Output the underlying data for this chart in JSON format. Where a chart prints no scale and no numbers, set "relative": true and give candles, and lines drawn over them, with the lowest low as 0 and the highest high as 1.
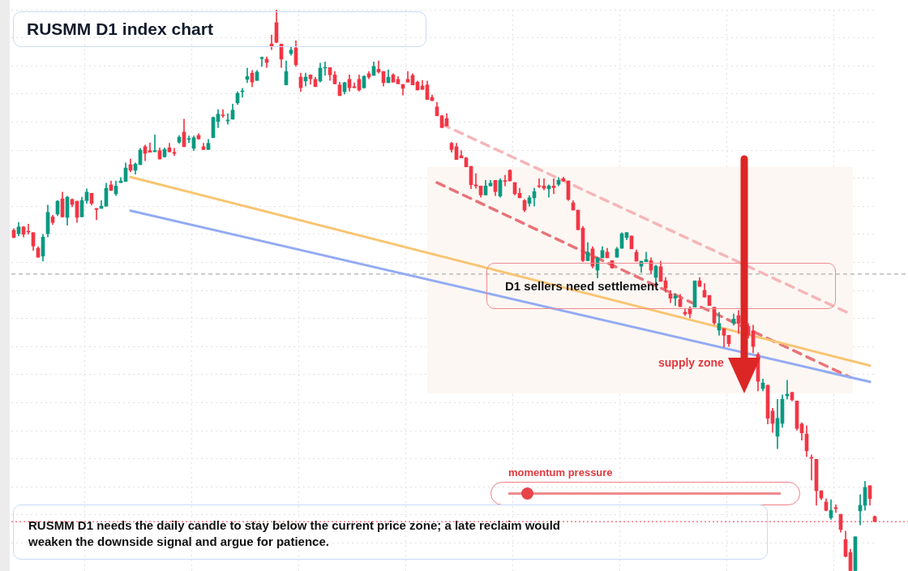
{
  "chart_data": {
    "type": "candlestick",
    "title": "RUSMM D1 index chart",
    "relative": true,
    "grid": true,
    "categories": [
      null,
      null,
      null,
      null,
      null,
      null,
      null,
      null,
      null,
      null,
      null,
      null,
      null,
      null,
      null,
      null,
      null,
      null,
      null,
      null,
      null,
      null,
      null,
      null,
      null,
      null,
      null,
      null,
      null,
      null,
      null,
      null,
      null,
      null,
      null,
      null,
      null,
      null,
      null,
      null,
      null,
      null,
      null,
      null,
      null,
      null,
      null,
      null,
      null,
      null,
      null,
      null,
      null,
      null,
      null,
      null,
      null,
      null,
      null,
      null,
      null,
      null,
      null,
      null,
      null,
      null,
      null,
      null,
      null,
      null,
      null,
      null,
      null,
      null,
      null,
      null,
      null,
      null,
      null,
      null,
      null,
      null,
      null,
      null,
      null,
      null,
      null,
      null,
      null,
      null,
      null,
      null,
      null,
      null,
      null,
      null,
      null,
      null,
      null,
      null,
      null,
      null,
      null,
      null,
      null,
      null,
      null,
      null,
      null,
      null,
      null,
      null,
      null,
      null,
      null,
      null,
      null,
      null,
      null,
      null,
      null,
      null,
      null,
      null,
      null,
      null,
      null,
      null,
      null,
      null,
      null,
      null,
      null,
      null,
      null,
      null,
      null,
      null,
      null,
      null,
      null,
      null,
      null,
      null,
      null,
      null,
      null,
      null,
      null,
      null,
      null,
      null,
      null,
      null,
      null,
      null,
      null,
      null,
      null,
      null,
      null,
      null,
      null,
      null,
      null,
      null,
      null,
      null,
      null,
      null,
      null,
      null,
      null,
      null,
      null,
      null,
      null,
      null
    ],
    "ohlc": [
      [
        0.607,
        0.61,
        0.594,
        0.594
      ],
      [
        0.601,
        0.621,
        0.597,
        0.613
      ],
      [
        0.613,
        0.614,
        0.595,
        0.6
      ],
      [
        0.605,
        0.618,
        0.6,
        0.604
      ],
      [
        0.603,
        0.603,
        0.571,
        0.579
      ],
      [
        0.575,
        0.578,
        0.559,
        0.559
      ],
      [
        0.561,
        0.6,
        0.552,
        0.595
      ],
      [
        0.601,
        0.652,
        0.595,
        0.639
      ],
      [
        0.631,
        0.634,
        0.617,
        0.621
      ],
      [
        0.636,
        0.66,
        0.633,
        0.659
      ],
      [
        0.663,
        0.675,
        0.63,
        0.631
      ],
      [
        0.63,
        0.668,
        0.616,
        0.666
      ],
      [
        0.662,
        0.663,
        0.649,
        0.653
      ],
      [
        0.659,
        0.659,
        0.621,
        0.63
      ],
      [
        0.631,
        0.666,
        0.631,
        0.66
      ],
      [
        0.66,
        0.681,
        0.655,
        0.675
      ],
      [
        0.673,
        0.673,
        0.652,
        0.655
      ],
      [
        0.646,
        0.646,
        0.626,
        0.644
      ],
      [
        0.646,
        0.66,
        0.646,
        0.65
      ],
      [
        0.65,
        0.691,
        0.65,
        0.682
      ],
      [
        0.688,
        0.695,
        0.678,
        0.678
      ],
      [
        0.672,
        0.695,
        0.669,
        0.686
      ],
      [
        0.692,
        0.701,
        0.692,
        0.695
      ],
      [
        0.694,
        0.727,
        0.694,
        0.718
      ],
      [
        0.724,
        0.734,
        0.711,
        0.714
      ],
      [
        0.714,
        0.727,
        0.707,
        0.725
      ],
      [
        0.724,
        0.753,
        0.724,
        0.75
      ],
      [
        0.756,
        0.759,
        0.731,
        0.744
      ],
      [
        0.749,
        0.763,
        0.746,
        0.746
      ],
      [
        0.747,
        0.777,
        0.747,
        0.749
      ],
      [
        0.749,
        0.754,
        0.734,
        0.734
      ],
      [
        0.738,
        0.754,
        0.737,
        0.751
      ],
      [
        0.754,
        0.762,
        0.746,
        0.747
      ],
      [
        0.746,
        0.753,
        0.74,
        0.744
      ],
      [
        0.764,
        0.776,
        0.762,
        0.773
      ],
      [
        0.782,
        0.805,
        0.756,
        0.756
      ],
      [
        0.769,
        0.775,
        0.763,
        0.77
      ],
      [
        0.753,
        0.775,
        0.749,
        0.772
      ],
      [
        0.776,
        0.779,
        0.769,
        0.77
      ],
      [
        0.756,
        0.762,
        0.751,
        0.751
      ],
      [
        0.751,
        0.769,
        0.751,
        0.762
      ],
      [
        0.772,
        0.809,
        0.772,
        0.808
      ],
      [
        0.801,
        0.822,
        0.79,
        0.814
      ],
      [
        0.812,
        0.822,
        0.808,
        0.811
      ],
      [
        0.802,
        0.815,
        0.796,
        0.803
      ],
      [
        0.805,
        0.832,
        0.805,
        0.821
      ],
      [
        0.834,
        0.854,
        0.831,
        0.851
      ],
      [
        0.854,
        0.86,
        0.844,
        0.855
      ],
      [
        0.876,
        0.896,
        0.87,
        0.881
      ],
      [
        0.887,
        0.892,
        0.863,
        0.871
      ],
      [
        0.874,
        0.892,
        0.874,
        0.889
      ],
      [
        0.913,
        0.916,
        0.899,
        0.915
      ],
      [
        0.912,
        0.916,
        0.897,
        0.906
      ],
      [
        0.939,
        0.955,
        0.929,
        0.935
      ],
      [
        0.977,
        1.0,
        0.941,
        0.942
      ],
      [
        0.939,
        0.939,
        0.897,
        0.912
      ],
      [
        0.866,
        0.909,
        0.866,
        0.89
      ],
      [
        0.922,
        0.933,
        0.919,
        0.928
      ],
      [
        0.932,
        0.945,
        0.899,
        0.902
      ],
      [
        0.88,
        0.887,
        0.854,
        0.861
      ],
      [
        0.873,
        0.887,
        0.864,
        0.88
      ],
      [
        0.884,
        0.884,
        0.867,
        0.877
      ],
      [
        0.876,
        0.88,
        0.863,
        0.863
      ],
      [
        0.873,
        0.905,
        0.871,
        0.896
      ],
      [
        0.896,
        0.907,
        0.883,
        0.897
      ],
      [
        0.897,
        0.897,
        0.874,
        0.884
      ],
      [
        0.884,
        0.89,
        0.868,
        0.868
      ],
      [
        0.866,
        0.871,
        0.847,
        0.847
      ],
      [
        0.854,
        0.871,
        0.85,
        0.87
      ],
      [
        0.876,
        0.884,
        0.855,
        0.861
      ],
      [
        0.863,
        0.87,
        0.861,
        0.861
      ],
      [
        0.876,
        0.884,
        0.855,
        0.857
      ],
      [
        0.861,
        0.883,
        0.86,
        0.881
      ],
      [
        0.886,
        0.89,
        0.877,
        0.88
      ],
      [
        0.883,
        0.907,
        0.883,
        0.899
      ],
      [
        0.894,
        0.909,
        0.887,
        0.889
      ],
      [
        0.89,
        0.89,
        0.864,
        0.87
      ],
      [
        0.87,
        0.893,
        0.87,
        0.88
      ],
      [
        0.884,
        0.886,
        0.871,
        0.871
      ],
      [
        0.876,
        0.881,
        0.868,
        0.868
      ],
      [
        0.867,
        0.867,
        0.848,
        0.86
      ],
      [
        0.876,
        0.89,
        0.871,
        0.871
      ],
      [
        0.883,
        0.886,
        0.866,
        0.866
      ],
      [
        0.871,
        0.873,
        0.857,
        0.857
      ],
      [
        0.864,
        0.874,
        0.858,
        0.858
      ],
      [
        0.866,
        0.873,
        0.84,
        0.84
      ],
      [
        0.844,
        0.848,
        0.838,
        0.838
      ],
      [
        0.827,
        0.835,
        0.811,
        0.811
      ],
      [
        0.811,
        0.812,
        0.79,
        0.79
      ],
      [
        0.806,
        0.815,
        0.793,
        0.793
      ],
      [
        0.762,
        0.764,
        0.746,
        0.751
      ],
      [
        0.756,
        0.762,
        0.733,
        0.733
      ],
      [
        0.74,
        0.749,
        0.736,
        0.736
      ],
      [
        0.736,
        0.737,
        0.72,
        0.72
      ],
      [
        0.721,
        0.721,
        0.681,
        0.688
      ],
      [
        0.688,
        0.708,
        0.682,
        0.686
      ],
      [
        0.686,
        0.686,
        0.666,
        0.67
      ],
      [
        0.67,
        0.696,
        0.67,
        0.686
      ],
      [
        0.686,
        0.696,
        0.686,
        0.691
      ],
      [
        0.696,
        0.696,
        0.669,
        0.676
      ],
      [
        0.668,
        0.699,
        0.666,
        0.696
      ],
      [
        0.695,
        0.705,
        0.686,
        0.694
      ],
      [
        0.714,
        0.715,
        0.695,
        0.695
      ],
      [
        0.692,
        0.692,
        0.67,
        0.672
      ],
      [
        0.673,
        0.682,
        0.665,
        0.665
      ],
      [
        0.66,
        0.662,
        0.64,
        0.643
      ],
      [
        0.655,
        0.669,
        0.65,
        0.665
      ],
      [
        0.665,
        0.682,
        0.65,
        0.676
      ],
      [
        0.686,
        0.699,
        0.683,
        0.685
      ],
      [
        0.686,
        0.699,
        0.679,
        0.682
      ],
      [
        0.681,
        0.688,
        0.666,
        0.686
      ],
      [
        0.686,
        0.699,
        0.672,
        0.683
      ],
      [
        0.689,
        0.701,
        0.686,
        0.696
      ],
      [
        0.699,
        0.702,
        0.694,
        0.695
      ],
      [
        0.695,
        0.695,
        0.66,
        0.662
      ],
      [
        0.656,
        0.66,
        0.643,
        0.643
      ],
      [
        0.643,
        0.643,
        0.608,
        0.608
      ],
      [
        0.611,
        0.614,
        0.551,
        0.553
      ],
      [
        0.553,
        0.585,
        0.553,
        0.568
      ],
      [
        0.574,
        0.578,
        0.54,
        0.543
      ],
      [
        0.536,
        0.559,
        0.522,
        0.558
      ],
      [
        0.558,
        0.578,
        0.558,
        0.571
      ],
      [
        0.568,
        0.575,
        0.558,
        0.558
      ],
      [
        0.553,
        0.553,
        0.539,
        0.54
      ],
      [
        0.559,
        0.577,
        0.559,
        0.574
      ],
      [
        0.575,
        0.603,
        0.575,
        0.601
      ],
      [
        0.594,
        0.603,
        0.59,
        0.603
      ],
      [
        0.597,
        0.597,
        0.574,
        0.574
      ],
      [
        0.568,
        0.572,
        0.552,
        0.552
      ],
      [
        0.543,
        0.552,
        0.532,
        0.552
      ],
      [
        0.551,
        0.568,
        0.551,
        0.555
      ],
      [
        0.553,
        0.558,
        0.529,
        0.536
      ],
      [
        0.523,
        0.545,
        0.512,
        0.543
      ],
      [
        0.542,
        0.552,
        0.516,
        0.516
      ],
      [
        0.517,
        0.523,
        0.497,
        0.504
      ],
      [
        0.494,
        0.5,
        0.478,
        0.486
      ],
      [
        0.486,
        0.494,
        0.473,
        0.49
      ],
      [
        0.484,
        0.493,
        0.471,
        0.471
      ],
      [
        0.461,
        0.468,
        0.455,
        0.458
      ],
      [
        0.468,
        0.471,
        0.451,
        0.458
      ],
      [
        0.47,
        0.517,
        0.47,
        0.517
      ],
      [
        0.517,
        0.523,
        0.507,
        0.507
      ],
      [
        0.5,
        0.512,
        0.488,
        0.488
      ],
      [
        0.491,
        0.491,
        0.473,
        0.473
      ],
      [
        0.47,
        0.47,
        0.439,
        0.442
      ],
      [
        0.429,
        0.461,
        0.42,
        0.441
      ],
      [
        0.432,
        0.432,
        0.399,
        0.42
      ],
      [
        0.42,
        0.42,
        0.4,
        0.405
      ],
      [
        0.442,
        0.458,
        0.438,
        0.449
      ],
      [
        0.455,
        0.464,
        0.423,
        0.441
      ],
      null,
      [
        0.436,
        0.441,
        0.415,
        0.42
      ],
      [
        0.428,
        0.438,
        0.389,
        0.4
      ],
      [
        0.386,
        0.389,
        0.321,
        0.338
      ],
      [
        0.325,
        0.342,
        0.321,
        0.335
      ],
      [
        0.331,
        0.331,
        0.262,
        0.272
      ],
      [
        0.285,
        0.29,
        0.247,
        0.263
      ],
      [
        0.24,
        0.306,
        0.218,
        0.272
      ],
      [
        0.263,
        0.314,
        0.256,
        0.306
      ],
      [
        0.312,
        0.34,
        0.306,
        0.315
      ],
      [
        0.318,
        0.319,
        0.303,
        0.305
      ],
      [
        0.303,
        0.303,
        0.251,
        0.254
      ],
      [
        0.262,
        0.264,
        0.233,
        0.246
      ],
      [
        0.244,
        0.259,
        0.204,
        0.214
      ],
      [
        0.202,
        0.207,
        0.162,
        0.201
      ],
      [
        0.199,
        0.199,
        0.117,
        0.143
      ],
      [
        0.143,
        0.143,
        0.127,
        0.13
      ],
      [
        0.123,
        0.129,
        0.107,
        0.108
      ],
      [
        0.095,
        0.127,
        0.092,
        0.108
      ],
      [
        0.113,
        0.118,
        0.104,
        0.111
      ],
      [
        0.101,
        0.101,
        0.069,
        0.074
      ],
      [
        0.056,
        0.071,
        0.025,
        0.026
      ],
      [
        0.033,
        0.039,
        0,
        0
      ],
      [
        0,
        0.061,
        0,
        0.061
      ],
      [
        0.107,
        0.136,
        0.082,
        0.117
      ],
      [
        0.117,
        0.16,
        0.108,
        0.149
      ],
      [
        0.152,
        0.152,
        0.117,
        0.129
      ],
      [
        0.097,
        0.098,
        0.088,
        0.088
      ]
    ],
    "colors": [
      "#f23645",
      "#089981",
      "#f23645",
      "#f23645",
      "#f23645",
      "#f23645",
      "#089981",
      "#089981",
      "#f23645",
      "#089981",
      "#f23645",
      "#089981",
      "#f23645",
      "#f23645",
      "#089981",
      "#089981",
      "#f23645",
      "#f23645",
      "#089981",
      "#089981",
      "#f23645",
      "#089981",
      "#089981",
      "#089981",
      "#f23645",
      "#089981",
      "#089981",
      "#f23645",
      "#f23645",
      "#089981",
      "#f23645",
      "#089981",
      "#f23645",
      "#f23645",
      "#089981",
      "#f23645",
      "#089981",
      "#089981",
      "#f23645",
      "#f23645",
      "#089981",
      "#089981",
      "#089981",
      "#f23645",
      "#089981",
      "#089981",
      "#089981",
      "#089981",
      "#089981",
      "#f23645",
      "#089981",
      "#089981",
      "#f23645",
      "#f23645",
      "#f23645",
      "#f23645",
      "#089981",
      "#089981",
      "#f23645",
      "#f23645",
      "#089981",
      "#f23645",
      "#f23645",
      "#089981",
      "#089981",
      "#f23645",
      "#f23645",
      "#f23645",
      "#089981",
      "#f23645",
      "#f23645",
      "#f23645",
      "#089981",
      "#f23645",
      "#089981",
      "#f23645",
      "#f23645",
      "#089981",
      "#f23645",
      "#f23645",
      "#f23645",
      "#f23645",
      "#f23645",
      "#f23645",
      "#f23645",
      "#f23645",
      "#f23645",
      "#f23645",
      "#f23645",
      "#f23645",
      "#f23645",
      "#f23645",
      "#f23645",
      "#f23645",
      "#f23645",
      "#f23645",
      "#f23645",
      "#089981",
      "#089981",
      "#f23645",
      "#089981",
      "#f23645",
      "#f23645",
      "#f23645",
      "#f23645",
      "#f23645",
      "#089981",
      "#089981",
      "#f23645",
      "#f23645",
      "#089981",
      "#f23645",
      "#089981",
      "#f23645",
      "#f23645",
      "#f23645",
      "#f23645",
      "#f23645",
      "#089981",
      "#f23645",
      "#089981",
      "#089981",
      "#f23645",
      "#f23645",
      "#089981",
      "#089981",
      "#089981",
      "#f23645",
      "#f23645",
      "#089981",
      "#089981",
      "#f23645",
      "#089981",
      "#f23645",
      "#f23645",
      "#f23645",
      "#089981",
      "#f23645",
      "#f23645",
      "#f23645",
      "#089981",
      "#f23645",
      "#f23645",
      "#f23645",
      "#f23645",
      "#089981",
      "#f23645",
      "#f23645",
      "#089981",
      "#f23645",
      null,
      "#f23645",
      "#f23645",
      "#f23645",
      "#089981",
      "#f23645",
      "#f23645",
      "#089981",
      "#089981",
      "#089981",
      "#f23645",
      "#f23645",
      "#f23645",
      "#f23645",
      "#f23645",
      "#f23645",
      "#f23645",
      "#f23645",
      "#089981",
      "#f23645",
      "#f23645",
      "#f23645",
      "#f23645",
      "#089981",
      "#089981",
      "#089981",
      "#f23645",
      "#f23645"
    ],
    "series": [
      {
        "type": "line",
        "color": "#f8c572",
        "line_style": "solid",
        "values": [
          null,
          null,
          null,
          null,
          null,
          null,
          null,
          null,
          null,
          null,
          null,
          null,
          null,
          null,
          null,
          null,
          null,
          null,
          null,
          null,
          null,
          null,
          null,
          null,
          0.702,
          null,
          null,
          null,
          null,
          null,
          null,
          null,
          null,
          null,
          null,
          null,
          null,
          null,
          null,
          null,
          null,
          null,
          null,
          null,
          null,
          null,
          null,
          null,
          null,
          null,
          null,
          null,
          null,
          null,
          null,
          null,
          null,
          null,
          null,
          null,
          null,
          null,
          null,
          null,
          null,
          null,
          null,
          null,
          null,
          null,
          null,
          null,
          null,
          null,
          null,
          null,
          null,
          null,
          null,
          null,
          null,
          null,
          null,
          null,
          null,
          null,
          null,
          null,
          null,
          null,
          null,
          null,
          null,
          null,
          null,
          null,
          null,
          null,
          null,
          null,
          null,
          null,
          null,
          null,
          null,
          null,
          null,
          null,
          null,
          null,
          null,
          null,
          null,
          null,
          null,
          null,
          null,
          null,
          null,
          null,
          null,
          null,
          null,
          null,
          null,
          null,
          null,
          null,
          null,
          null,
          null,
          null,
          null,
          null,
          null,
          null,
          null,
          null,
          null,
          null,
          null,
          null,
          null,
          null,
          null,
          null,
          null,
          null,
          null,
          null,
          null,
          null,
          null,
          null,
          null,
          null,
          null,
          null,
          null,
          null,
          null,
          null,
          null,
          null,
          null,
          null,
          null,
          null,
          null,
          null,
          null,
          null,
          null,
          null,
          null,
          null,
          0.366,
          null
        ]
      },
      {
        "type": "line",
        "color": "#93abf3",
        "line_style": "solid",
        "values": [
          null,
          null,
          null,
          null,
          null,
          null,
          null,
          null,
          null,
          null,
          null,
          null,
          null,
          null,
          null,
          null,
          null,
          null,
          null,
          null,
          null,
          null,
          null,
          null,
          0.642,
          null,
          null,
          null,
          null,
          null,
          null,
          null,
          null,
          null,
          null,
          null,
          null,
          null,
          null,
          null,
          null,
          null,
          null,
          null,
          null,
          null,
          null,
          null,
          null,
          null,
          null,
          null,
          null,
          null,
          null,
          null,
          null,
          null,
          null,
          null,
          null,
          null,
          null,
          null,
          null,
          null,
          null,
          null,
          null,
          null,
          null,
          null,
          null,
          null,
          null,
          null,
          null,
          null,
          null,
          null,
          null,
          null,
          null,
          null,
          null,
          null,
          null,
          null,
          null,
          null,
          null,
          null,
          null,
          null,
          null,
          null,
          null,
          null,
          null,
          null,
          null,
          null,
          null,
          null,
          null,
          null,
          null,
          null,
          null,
          null,
          null,
          null,
          null,
          null,
          null,
          null,
          null,
          null,
          null,
          null,
          null,
          null,
          null,
          null,
          null,
          null,
          null,
          null,
          null,
          null,
          null,
          null,
          null,
          null,
          null,
          null,
          null,
          null,
          null,
          null,
          null,
          null,
          null,
          null,
          null,
          null,
          null,
          null,
          null,
          null,
          null,
          null,
          null,
          null,
          null,
          null,
          null,
          null,
          null,
          null,
          null,
          null,
          null,
          null,
          null,
          null,
          null,
          null,
          null,
          null,
          null,
          null,
          null,
          null,
          null,
          null,
          0.337,
          null
        ]
      },
      {
        "type": "line",
        "color": "#f5b6b9",
        "line_style": "dashed",
        "values": [
          null,
          null,
          null,
          null,
          null,
          null,
          null,
          null,
          null,
          null,
          null,
          null,
          null,
          null,
          null,
          null,
          null,
          null,
          null,
          null,
          null,
          null,
          null,
          null,
          null,
          null,
          null,
          null,
          null,
          null,
          null,
          null,
          null,
          null,
          null,
          null,
          null,
          null,
          null,
          null,
          null,
          null,
          null,
          null,
          null,
          null,
          null,
          null,
          null,
          null,
          null,
          null,
          null,
          null,
          null,
          null,
          null,
          null,
          null,
          null,
          null,
          null,
          null,
          null,
          null,
          null,
          null,
          null,
          null,
          null,
          null,
          null,
          null,
          null,
          null,
          null,
          null,
          null,
          null,
          null,
          null,
          null,
          null,
          null,
          null,
          null,
          null,
          null,
          0.796,
          null,
          null,
          null,
          null,
          null,
          null,
          null,
          null,
          null,
          null,
          null,
          null,
          null,
          null,
          null,
          null,
          null,
          null,
          null,
          null,
          null,
          null,
          null,
          null,
          null,
          null,
          null,
          null,
          null,
          null,
          null,
          null,
          null,
          null,
          null,
          null,
          null,
          null,
          null,
          null,
          null,
          null,
          null,
          null,
          null,
          null,
          null,
          null,
          null,
          null,
          null,
          null,
          null,
          null,
          null,
          null,
          null,
          null,
          null,
          null,
          null,
          null,
          null,
          null,
          null,
          null,
          null,
          null,
          null,
          null,
          null,
          null,
          null,
          null,
          null,
          null,
          null,
          null,
          null,
          null,
          null,
          null,
          null,
          0.458,
          null,
          null,
          null,
          null,
          null
        ]
      },
      {
        "type": "line",
        "color": "#e87379",
        "line_style": "dashed",
        "values": [
          null,
          null,
          null,
          null,
          null,
          null,
          null,
          null,
          null,
          null,
          null,
          null,
          null,
          null,
          null,
          null,
          null,
          null,
          null,
          null,
          null,
          null,
          null,
          null,
          null,
          null,
          null,
          null,
          null,
          null,
          null,
          null,
          null,
          null,
          null,
          null,
          null,
          null,
          null,
          null,
          null,
          null,
          null,
          null,
          null,
          null,
          null,
          null,
          null,
          null,
          null,
          null,
          null,
          null,
          null,
          null,
          null,
          null,
          null,
          null,
          null,
          null,
          null,
          null,
          null,
          null,
          null,
          null,
          null,
          null,
          null,
          null,
          null,
          null,
          null,
          null,
          null,
          null,
          null,
          null,
          null,
          null,
          null,
          null,
          null,
          null,
          null,
          0.692,
          null,
          null,
          null,
          null,
          null,
          null,
          null,
          null,
          null,
          null,
          null,
          null,
          null,
          null,
          null,
          null,
          null,
          null,
          null,
          null,
          null,
          null,
          null,
          null,
          null,
          null,
          null,
          null,
          null,
          null,
          null,
          null,
          null,
          null,
          null,
          null,
          null,
          null,
          null,
          null,
          null,
          null,
          null,
          null,
          null,
          null,
          null,
          null,
          null,
          null,
          null,
          null,
          null,
          null,
          null,
          null,
          null,
          null,
          null,
          null,
          null,
          null,
          null,
          null,
          null,
          null,
          null,
          null,
          null,
          null,
          null,
          null,
          null,
          null,
          null,
          null,
          null,
          null,
          null,
          null,
          null,
          null,
          null,
          null,
          0.345,
          null,
          null,
          null,
          null,
          null
        ]
      }
    ],
    "ref_lines": [
      {
        "axis": "y",
        "value": 0.529,
        "color": "#9a9a9a",
        "line_style": "dashed"
      },
      {
        "axis": "y",
        "value": 0.088,
        "color": "#f23645",
        "line_style": "dotted"
      }
    ],
    "bands": [
      {
        "axis": "y",
        "from": 0.316,
        "to": 0.72,
        "label": "supply zone",
        "color": "#fdf7f3"
      }
    ],
    "annotations": [
      "D1 sellers need settlement",
      "momentum pressure",
      "RUSMM D1 needs the daily candle to stay below the current price zone; a late reclaim would weaken the downside signal and argue for patience."
    ]
  }
}
